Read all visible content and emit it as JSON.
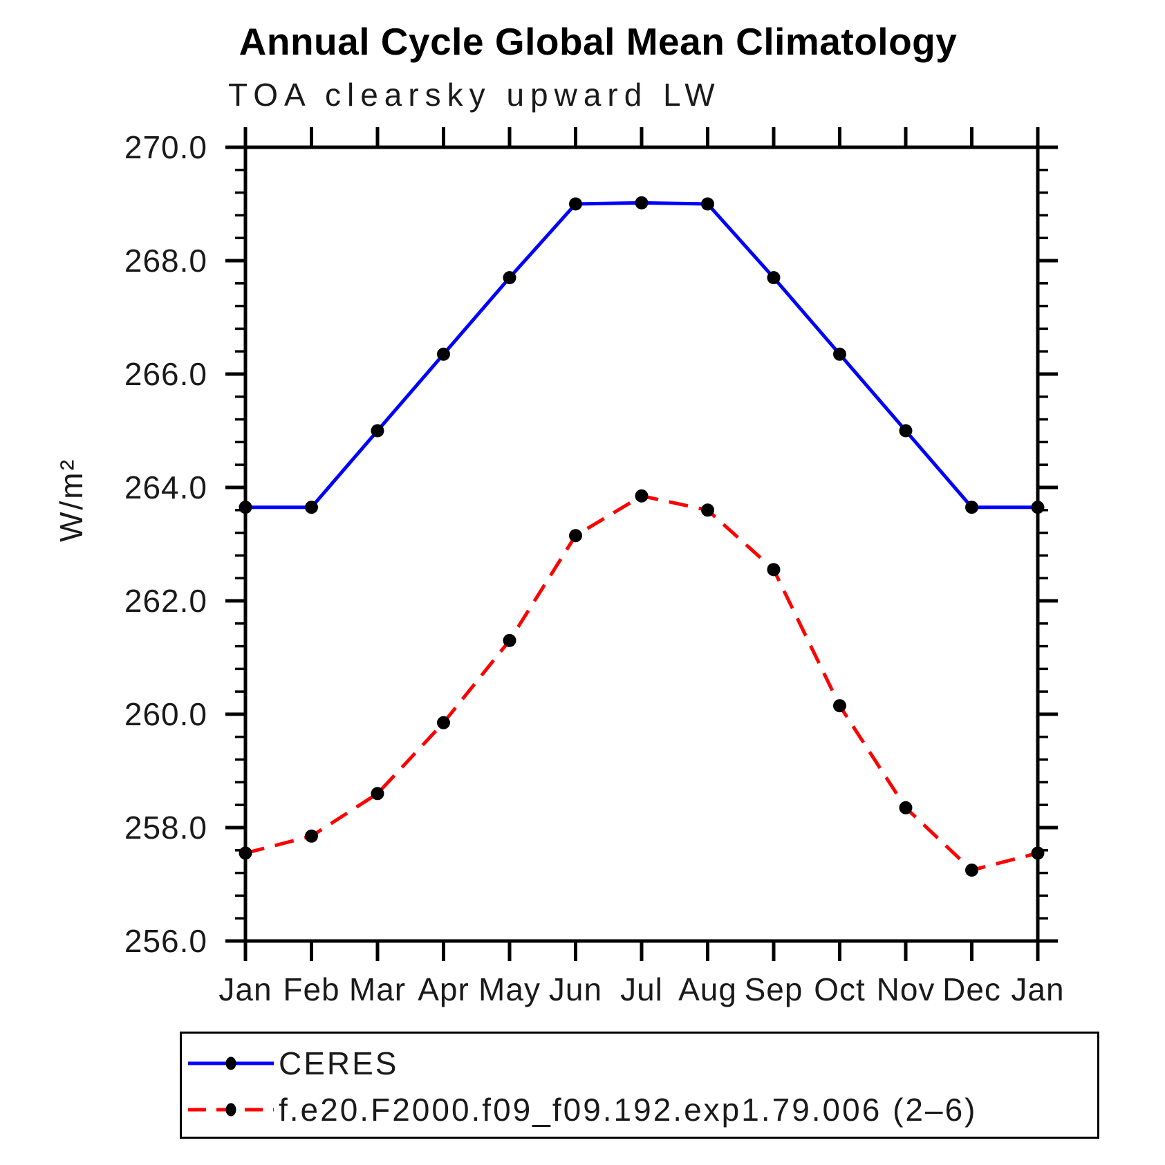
{
  "chart_data": {
    "type": "line",
    "title": "Annual Cycle Global Mean Climatology",
    "subtitle": "TOA clearsky upward LW",
    "ylabel": "W/m²",
    "xlabel": "",
    "categories": [
      "Jan",
      "Feb",
      "Mar",
      "Apr",
      "May",
      "Jun",
      "Jul",
      "Aug",
      "Sep",
      "Oct",
      "Nov",
      "Dec",
      "Jan"
    ],
    "series": [
      {
        "name": "CERES",
        "line_color": "#0000ff",
        "line_style": "solid",
        "marker": "filled-circle",
        "marker_color": "#000000",
        "values": [
          263.65,
          263.65,
          265.0,
          266.35,
          267.7,
          269.0,
          269.02,
          269.0,
          267.7,
          266.35,
          265.0,
          263.65,
          263.65
        ]
      },
      {
        "name": "f.e20.F2000.f09_f09.192.exp1.79.006 (2–6)",
        "line_color": "#ff0000",
        "line_style": "dashed",
        "marker": "filled-circle",
        "marker_color": "#000000",
        "values": [
          257.55,
          257.85,
          258.6,
          259.85,
          261.3,
          263.15,
          263.85,
          263.6,
          262.55,
          260.15,
          258.35,
          257.25,
          257.55
        ]
      }
    ],
    "ylim": [
      256.0,
      270.0
    ],
    "ytick_major_interval": 2.0,
    "ytick_minor_interval": 0.4,
    "ytick_labels": [
      "256.0",
      "258.0",
      "260.0",
      "262.0",
      "264.0",
      "266.0",
      "268.0",
      "270.0"
    ],
    "grid": false,
    "legend_position": "bottom-left"
  }
}
